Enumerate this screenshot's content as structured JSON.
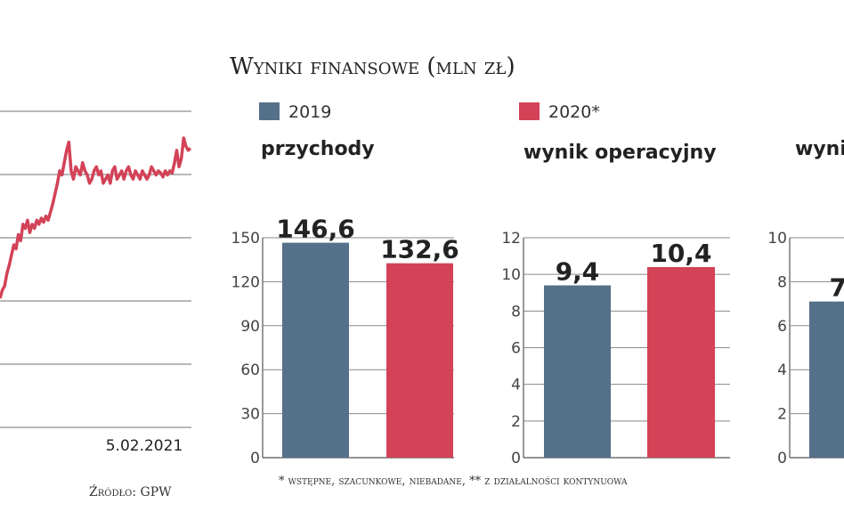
{
  "colors": {
    "c2019": "#557089",
    "c2020": "#d34257",
    "grid": "#8e8e8e",
    "text": "#222222"
  },
  "legend": [
    {
      "label": "2019",
      "color": "#557089"
    },
    {
      "label": "2020*",
      "color": "#d34257"
    }
  ],
  "footnote": "* wstępne, szacunkowe, niebadane, ** z działalności kontynuowa",
  "chart_data": [
    {
      "type": "line",
      "xlabel": "",
      "ylabel": "",
      "x_end_label": "5.02.2021",
      "source": "Źródło: GPW",
      "series": [
        {
          "values": [
            0.24,
            0.28,
            0.3,
            0.36,
            0.4,
            0.45,
            0.5,
            0.48,
            0.55,
            0.52,
            0.6,
            0.58,
            0.62,
            0.56,
            0.6,
            0.58,
            0.62,
            0.6,
            0.63,
            0.61,
            0.64,
            0.62,
            0.66,
            0.7,
            0.75,
            0.8,
            0.86,
            0.84,
            0.9,
            0.96,
            1.0,
            0.86,
            0.82,
            0.88,
            0.86,
            0.84,
            0.9,
            0.86,
            0.84,
            0.8,
            0.82,
            0.86,
            0.88,
            0.84,
            0.86,
            0.8,
            0.82,
            0.84,
            0.8,
            0.86,
            0.88,
            0.82,
            0.84,
            0.86,
            0.82,
            0.86,
            0.88,
            0.84,
            0.82,
            0.86,
            0.84,
            0.82,
            0.86,
            0.84,
            0.82,
            0.84,
            0.88,
            0.86,
            0.84,
            0.86,
            0.85,
            0.83,
            0.86,
            0.84,
            0.86,
            0.85,
            0.9,
            0.96,
            0.88,
            0.92,
            1.02,
            0.98,
            0.96,
            0.97
          ]
        }
      ]
    },
    {
      "type": "bar",
      "title": "Wyniki finansowe (mln zł)",
      "panels": [
        {
          "title": "przychody",
          "ylim": [
            0,
            150
          ],
          "yticks": [
            0,
            30,
            60,
            90,
            120,
            150
          ],
          "series": [
            {
              "name": "2019",
              "value": 146.6,
              "label": "146,6"
            },
            {
              "name": "2020*",
              "value": 132.6,
              "label": "132,6"
            }
          ]
        },
        {
          "title": "wynik operacyjny",
          "ylim": [
            0,
            12
          ],
          "yticks": [
            0,
            2,
            4,
            6,
            8,
            10,
            12
          ],
          "series": [
            {
              "name": "2019",
              "value": 9.4,
              "label": "9,4"
            },
            {
              "name": "2020*",
              "value": 10.4,
              "label": "10,4"
            }
          ]
        },
        {
          "title": "wyni",
          "ylim": [
            0,
            10
          ],
          "yticks": [
            0,
            2,
            4,
            6,
            8,
            10
          ],
          "series": [
            {
              "name": "2019",
              "value": 7.1,
              "label": "7,"
            }
          ]
        }
      ]
    }
  ]
}
